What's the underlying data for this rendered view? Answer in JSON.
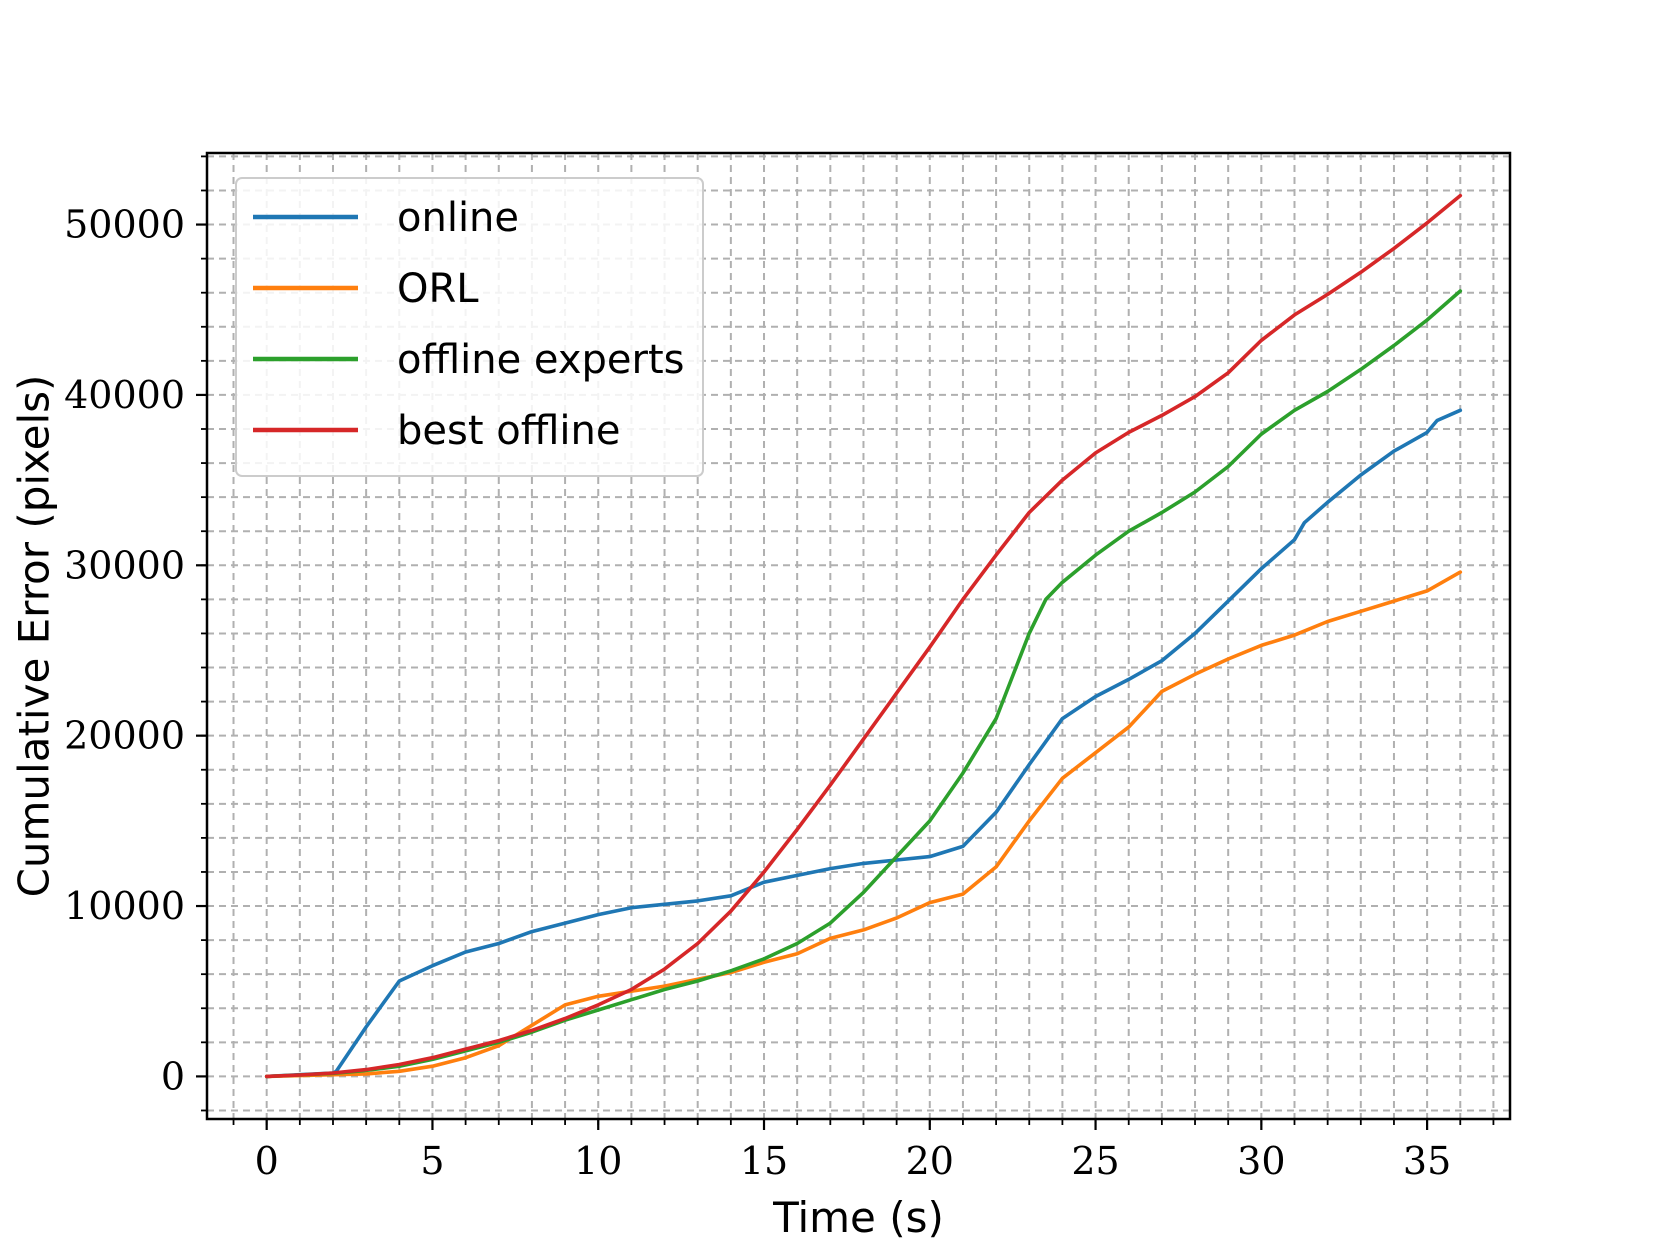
{
  "chart_data": {
    "type": "line",
    "title": "",
    "xlabel": "Time (s)",
    "ylabel": "Cumulative Error (pixels)",
    "xlim": [
      -1.8,
      37.5
    ],
    "ylim": [
      -2500,
      54200
    ],
    "xticks": [
      0,
      5,
      10,
      15,
      20,
      25,
      30,
      35
    ],
    "yticks": [
      0,
      10000,
      20000,
      30000,
      40000,
      50000
    ],
    "x_minor_step": 1,
    "y_minor_step": 2000,
    "grid": "major and minor, dashed",
    "legend_position": "top-left",
    "series": [
      {
        "name": "online",
        "color": "#1f77b4",
        "points": [
          [
            0,
            0
          ],
          [
            1,
            100
          ],
          [
            2,
            200
          ],
          [
            2.1,
            300
          ],
          [
            3,
            2900
          ],
          [
            4,
            5600
          ],
          [
            5,
            6500
          ],
          [
            6,
            7300
          ],
          [
            7,
            7800
          ],
          [
            8,
            8500
          ],
          [
            9,
            9000
          ],
          [
            10,
            9500
          ],
          [
            11,
            9900
          ],
          [
            12,
            10100
          ],
          [
            13,
            10300
          ],
          [
            14,
            10600
          ],
          [
            15,
            11400
          ],
          [
            16,
            11800
          ],
          [
            17,
            12200
          ],
          [
            18,
            12500
          ],
          [
            19,
            12700
          ],
          [
            20,
            12900
          ],
          [
            21,
            13500
          ],
          [
            22,
            15500
          ],
          [
            23,
            18300
          ],
          [
            24,
            21000
          ],
          [
            25,
            22300
          ],
          [
            26,
            23300
          ],
          [
            27,
            24400
          ],
          [
            28,
            26000
          ],
          [
            29,
            27900
          ],
          [
            30,
            29800
          ],
          [
            31,
            31500
          ],
          [
            31.3,
            32500
          ],
          [
            32,
            33700
          ],
          [
            33,
            35300
          ],
          [
            34,
            36700
          ],
          [
            35,
            37800
          ],
          [
            35.3,
            38500
          ],
          [
            36,
            39100
          ]
        ]
      },
      {
        "name": "ORL",
        "color": "#ff7f0e",
        "points": [
          [
            0,
            0
          ],
          [
            1,
            50
          ],
          [
            2,
            100
          ],
          [
            3,
            150
          ],
          [
            4,
            300
          ],
          [
            5,
            600
          ],
          [
            6,
            1100
          ],
          [
            7,
            1800
          ],
          [
            8,
            3000
          ],
          [
            9,
            4200
          ],
          [
            10,
            4700
          ],
          [
            11,
            5000
          ],
          [
            12,
            5300
          ],
          [
            13,
            5700
          ],
          [
            14,
            6100
          ],
          [
            15,
            6700
          ],
          [
            16,
            7200
          ],
          [
            17,
            8100
          ],
          [
            18,
            8600
          ],
          [
            19,
            9300
          ],
          [
            20,
            10200
          ],
          [
            21,
            10700
          ],
          [
            22,
            12300
          ],
          [
            23,
            15000
          ],
          [
            24,
            17500
          ],
          [
            25,
            19000
          ],
          [
            26,
            20500
          ],
          [
            27,
            22600
          ],
          [
            28,
            23600
          ],
          [
            29,
            24500
          ],
          [
            30,
            25300
          ],
          [
            31,
            25900
          ],
          [
            32,
            26700
          ],
          [
            33,
            27300
          ],
          [
            34,
            27900
          ],
          [
            35,
            28500
          ],
          [
            36,
            29600
          ]
        ]
      },
      {
        "name": "offline experts",
        "color": "#2ca02c",
        "points": [
          [
            0,
            0
          ],
          [
            1,
            80
          ],
          [
            2,
            180
          ],
          [
            3,
            350
          ],
          [
            4,
            600
          ],
          [
            5,
            1000
          ],
          [
            6,
            1500
          ],
          [
            7,
            2000
          ],
          [
            8,
            2600
          ],
          [
            9,
            3300
          ],
          [
            10,
            3900
          ],
          [
            11,
            4500
          ],
          [
            12,
            5100
          ],
          [
            13,
            5600
          ],
          [
            14,
            6200
          ],
          [
            15,
            6900
          ],
          [
            16,
            7800
          ],
          [
            17,
            9000
          ],
          [
            18,
            10800
          ],
          [
            19,
            12900
          ],
          [
            20,
            15000
          ],
          [
            21,
            17800
          ],
          [
            22,
            21000
          ],
          [
            23,
            26000
          ],
          [
            23.5,
            28000
          ],
          [
            24,
            29000
          ],
          [
            25,
            30600
          ],
          [
            26,
            32000
          ],
          [
            27,
            33100
          ],
          [
            28,
            34300
          ],
          [
            29,
            35800
          ],
          [
            30,
            37700
          ],
          [
            31,
            39100
          ],
          [
            32,
            40200
          ],
          [
            33,
            41500
          ],
          [
            34,
            42900
          ],
          [
            35,
            44400
          ],
          [
            36,
            46100
          ]
        ]
      },
      {
        "name": "best offline",
        "color": "#d62728",
        "points": [
          [
            0,
            0
          ],
          [
            1,
            80
          ],
          [
            2,
            200
          ],
          [
            3,
            400
          ],
          [
            4,
            700
          ],
          [
            5,
            1100
          ],
          [
            6,
            1600
          ],
          [
            7,
            2100
          ],
          [
            8,
            2700
          ],
          [
            9,
            3400
          ],
          [
            10,
            4200
          ],
          [
            11,
            5100
          ],
          [
            12,
            6300
          ],
          [
            13,
            7800
          ],
          [
            14,
            9700
          ],
          [
            15,
            12000
          ],
          [
            16,
            14500
          ],
          [
            17,
            17100
          ],
          [
            18,
            19800
          ],
          [
            19,
            22500
          ],
          [
            20,
            25200
          ],
          [
            21,
            28000
          ],
          [
            22,
            30600
          ],
          [
            23,
            33100
          ],
          [
            24,
            35000
          ],
          [
            25,
            36600
          ],
          [
            26,
            37800
          ],
          [
            27,
            38800
          ],
          [
            28,
            39900
          ],
          [
            29,
            41300
          ],
          [
            30,
            43200
          ],
          [
            31,
            44700
          ],
          [
            32,
            45900
          ],
          [
            33,
            47200
          ],
          [
            34,
            48600
          ],
          [
            35,
            50100
          ],
          [
            36,
            51700
          ]
        ]
      }
    ]
  }
}
